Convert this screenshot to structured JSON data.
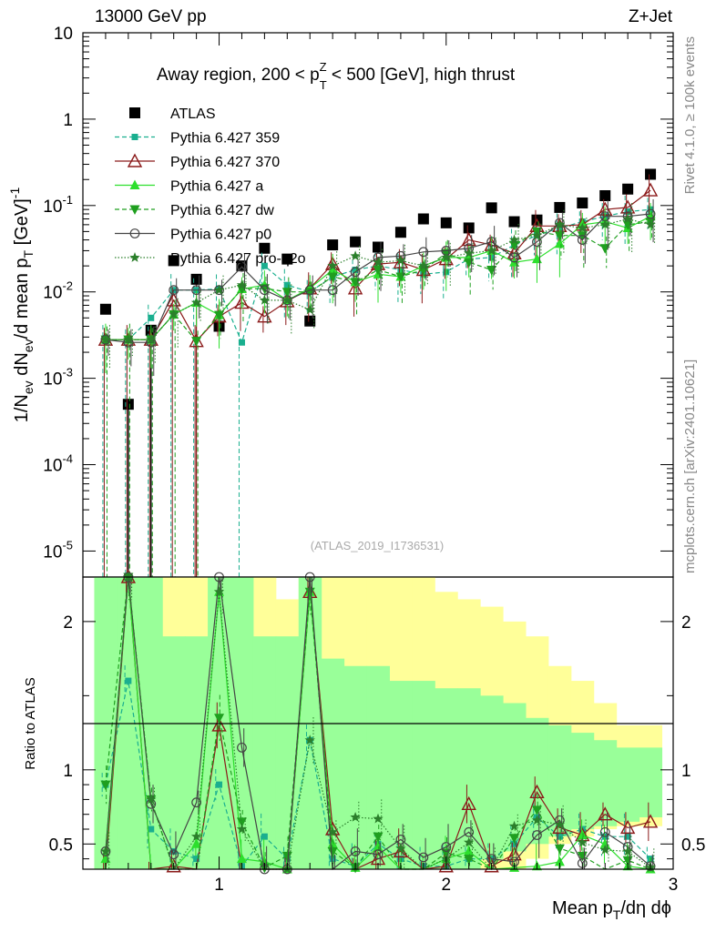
{
  "header": {
    "left": "13000 GeV pp",
    "right": "Z+Jet"
  },
  "plot_title": {
    "prefix": "Away region, 200 < p",
    "sup": "Z",
    "sub": "T",
    "suffix": " < 500 [GeV], high thrust"
  },
  "side_labels": {
    "rivet": "Rivet 4.1.0, ≥ 100k events",
    "mcplots": "mcplots.cern.ch [arXiv:2401.10621]"
  },
  "watermark": "(ATLAS_2019_I1736531)",
  "colors": {
    "atlas": "#000000",
    "p359": "#1aaf8f",
    "p370": "#8b1a1a",
    "pa": "#2ddf2d",
    "pdw": "#1f9f1f",
    "pp0": "#444444",
    "pq2o": "#2b7f2b",
    "band_outer": "#ffff99",
    "band_inner": "#99ff99"
  },
  "chart_data": [
    {
      "type": "scatter",
      "name": "main",
      "ylabel": "1/N_ev dN_ev/d mean p_T [GeV]^-1",
      "yscale": "log",
      "ylim": [
        5e-06,
        10
      ],
      "xlim": [
        0.4,
        3.0
      ],
      "y_tick_labels": [
        "10",
        "1",
        "10^-1",
        "10^-2",
        "10^-3",
        "10^-4",
        "10^-5"
      ],
      "x": [
        0.5,
        0.6,
        0.7,
        0.8,
        0.9,
        1.0,
        1.1,
        1.2,
        1.3,
        1.4,
        1.5,
        1.6,
        1.7,
        1.8,
        1.9,
        2.0,
        2.1,
        2.2,
        2.3,
        2.4,
        2.5,
        2.6,
        2.7,
        2.8,
        2.9
      ],
      "series": [
        {
          "name": "ATLAS",
          "key": "atlas",
          "marker": "square",
          "values": [
            0.0063,
            0.0005,
            0.0036,
            0.023,
            0.014,
            0.004,
            0.02,
            0.032,
            0.024,
            0.0046,
            0.035,
            0.038,
            0.033,
            0.049,
            0.07,
            0.063,
            0.055,
            0.094,
            0.065,
            0.068,
            0.095,
            0.107,
            0.13,
            0.155,
            0.23
          ]
        },
        {
          "name": "Pythia 6.427 359",
          "key": "p359",
          "marker": "square-small",
          "dash": "5,3",
          "values": [
            0.0028,
            0.0028,
            0.005,
            0.0105,
            0.0105,
            0.0108,
            0.0026,
            0.02,
            0.012,
            0.01,
            0.015,
            0.018,
            0.02,
            0.018,
            0.016,
            0.017,
            0.024,
            0.025,
            0.035,
            0.045,
            0.055,
            0.065,
            0.075,
            0.085,
            0.09
          ]
        },
        {
          "name": "Pythia 6.427 370",
          "key": "p370",
          "marker": "triangle-open",
          "values": [
            0.0028,
            0.0028,
            0.0028,
            0.008,
            0.0027,
            0.0052,
            0.0075,
            0.0052,
            0.0078,
            0.011,
            0.021,
            0.011,
            0.021,
            0.022,
            0.018,
            0.024,
            0.04,
            0.035,
            0.028,
            0.058,
            0.058,
            0.06,
            0.09,
            0.095,
            0.15
          ]
        },
        {
          "name": "Pythia 6.427 a",
          "key": "pa",
          "marker": "triangle",
          "values": [
            0.0028,
            0.0028,
            0.0028,
            0.0055,
            0.0075,
            0.0054,
            0.0108,
            0.012,
            0.008,
            0.011,
            0.018,
            0.013,
            0.016,
            0.015,
            0.02,
            0.025,
            0.025,
            0.03,
            0.022,
            0.024,
            0.036,
            0.06,
            0.065,
            0.055,
            0.075
          ]
        },
        {
          "name": "Pythia 6.427 dw",
          "key": "pdw",
          "marker": "triangle-down",
          "dash": "5,3",
          "values": [
            0.0028,
            0.0028,
            0.0028,
            0.0055,
            0.0027,
            0.0054,
            0.0108,
            0.011,
            0.01,
            0.01,
            0.015,
            0.013,
            0.018,
            0.015,
            0.018,
            0.028,
            0.022,
            0.018,
            0.035,
            0.05,
            0.045,
            0.045,
            0.032,
            0.06,
            0.065
          ]
        },
        {
          "name": "Pythia 6.427 p0",
          "key": "pp0",
          "marker": "circle-open",
          "values": [
            0.0028,
            0.0026,
            0.0026,
            0.0105,
            0.0105,
            0.0105,
            0.0195,
            0.0105,
            0.008,
            0.0105,
            0.0105,
            0.017,
            0.025,
            0.026,
            0.029,
            0.03,
            0.032,
            0.038,
            0.025,
            0.038,
            0.063,
            0.04,
            0.075,
            0.075,
            0.08
          ]
        },
        {
          "name": "Pythia 6.427 pro-q2o",
          "key": "pq2o",
          "marker": "star",
          "dash": "1.5,2",
          "values": [
            0.0028,
            0.0028,
            0.0028,
            0.0055,
            0.0075,
            0.0105,
            0.012,
            0.008,
            0.008,
            0.0062,
            0.02,
            0.026,
            0.022,
            0.023,
            0.02,
            0.025,
            0.028,
            0.03,
            0.04,
            0.045,
            0.06,
            0.055,
            0.06,
            0.07,
            0.06
          ]
        }
      ]
    },
    {
      "type": "line",
      "name": "ratio",
      "ylabel": "Ratio to ATLAS",
      "ylim": [
        0.33,
        2.3
      ],
      "y_ticks": [
        0.5,
        1,
        2
      ],
      "y_tick_labels": [
        "0.5",
        "1",
        "2"
      ],
      "x_ticks": [
        1,
        2,
        3
      ],
      "x_tick_labels": [
        "1",
        "2",
        "3"
      ],
      "xlabel": "Mean p_T/dη dϕ",
      "band_outer_hi": [
        2.3,
        2.3,
        2.3,
        2.3,
        2.3,
        2.3,
        2.3,
        2.3,
        2.15,
        2.3,
        2.3,
        2.3,
        2.3,
        2.3,
        2.3,
        2.2,
        2.15,
        2.1,
        2.0,
        1.9,
        1.7,
        1.6,
        1.45,
        1.3,
        1.3
      ],
      "band_outer_lo": [
        0.33,
        0.33,
        0.33,
        0.33,
        0.33,
        0.33,
        0.33,
        0.33,
        0.33,
        0.33,
        0.33,
        0.33,
        0.33,
        0.33,
        0.33,
        0.33,
        0.33,
        0.33,
        0.33,
        0.4,
        0.5,
        0.55,
        0.6,
        0.62,
        0.62
      ],
      "band_inner_hi": [
        2.3,
        2.3,
        2.3,
        1.9,
        1.9,
        2.3,
        2.3,
        1.9,
        1.9,
        2.3,
        1.75,
        1.7,
        1.7,
        1.6,
        1.6,
        1.55,
        1.55,
        1.5,
        1.45,
        1.35,
        1.3,
        1.25,
        1.2,
        1.15,
        1.15
      ],
      "band_inner_lo": [
        0.33,
        0.33,
        0.33,
        0.33,
        0.33,
        0.33,
        0.33,
        0.33,
        0.33,
        0.33,
        0.33,
        0.33,
        0.33,
        0.33,
        0.33,
        0.33,
        0.33,
        0.4,
        0.45,
        0.5,
        0.55,
        0.6,
        0.62,
        0.65,
        0.68
      ],
      "series": [
        {
          "key": "p359",
          "values": [
            0.9,
            1.6,
            0.6,
            0.45,
            0.4,
            0.9,
            0.35,
            0.55,
            0.4,
            1.2,
            0.4,
            0.35,
            0.5,
            0.4,
            0.35,
            0.35,
            0.4,
            0.4,
            0.5,
            0.68,
            0.55,
            0.6,
            0.55,
            0.55,
            0.4
          ]
        },
        {
          "key": "p370",
          "values": [
            0.3,
            2.3,
            0.3,
            0.35,
            0.2,
            1.3,
            0.3,
            0.2,
            0.3,
            2.2,
            0.6,
            0.3,
            0.4,
            0.45,
            0.3,
            0.35,
            0.77,
            0.35,
            0.43,
            0.85,
            0.61,
            0.56,
            0.7,
            0.61,
            0.65
          ]
        },
        {
          "key": "pa",
          "values": [
            0.4,
            2.3,
            0.3,
            0.24,
            0.5,
            2.2,
            0.4,
            0.38,
            0.33,
            2.2,
            0.5,
            0.34,
            0.48,
            0.3,
            0.3,
            0.4,
            0.45,
            0.32,
            0.34,
            0.35,
            0.38,
            0.56,
            0.5,
            0.35,
            0.33
          ]
        },
        {
          "key": "pdw",
          "values": [
            0.9,
            2.3,
            0.8,
            0.24,
            0.2,
            1.35,
            0.65,
            0.34,
            0.42,
            2.2,
            0.45,
            0.34,
            0.55,
            0.3,
            0.26,
            0.44,
            0.4,
            0.19,
            0.54,
            0.73,
            0.47,
            0.42,
            0.25,
            0.39,
            0.28
          ]
        },
        {
          "key": "pp0",
          "values": [
            0.45,
            2.3,
            0.77,
            0.43,
            0.78,
            2.3,
            1.15,
            0.33,
            0.33,
            2.3,
            0.3,
            0.45,
            0.43,
            0.53,
            0.41,
            0.48,
            0.58,
            0.4,
            0.38,
            0.56,
            0.66,
            0.37,
            0.58,
            0.48,
            0.35
          ]
        },
        {
          "key": "pq2o",
          "values": [
            0.45,
            2.3,
            0.8,
            0.24,
            0.55,
            2.2,
            0.6,
            0.25,
            0.33,
            1.2,
            0.58,
            0.68,
            0.67,
            0.47,
            0.29,
            0.4,
            0.51,
            0.32,
            0.62,
            0.66,
            0.63,
            0.51,
            0.46,
            0.45,
            0.34
          ]
        }
      ]
    }
  ]
}
